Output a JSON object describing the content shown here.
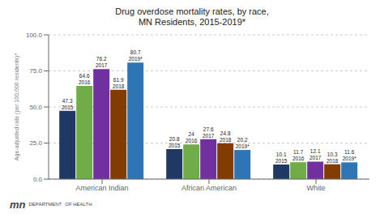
{
  "chart_data": {
    "type": "bar",
    "title": "Drug overdose mortality rates, by race,\nMN Residents, 2015-2019*",
    "ylabel": "Age-adjusted rate (per 100,000 residents)*",
    "categories": [
      "American Indian",
      "African American",
      "White"
    ],
    "series": [
      {
        "name": "2015",
        "color": "#1f3864",
        "values": [
          47.3,
          20.8,
          10.1
        ]
      },
      {
        "name": "2016",
        "color": "#70ad47",
        "values": [
          64.6,
          24.0,
          11.7
        ]
      },
      {
        "name": "2017",
        "color": "#7030a0",
        "values": [
          76.2,
          27.6,
          12.1
        ]
      },
      {
        "name": "2018",
        "color": "#833c00",
        "values": [
          61.9,
          24.8,
          10.3
        ]
      },
      {
        "name": "2019*",
        "color": "#2e75b6",
        "values": [
          80.7,
          20.2,
          11.6
        ]
      }
    ],
    "ylim": [
      0,
      100
    ],
    "yticks": [
      {
        "value": 0,
        "label": "0.0"
      },
      {
        "value": 25,
        "label": "25.0"
      },
      {
        "value": 50,
        "label": "50.0"
      },
      {
        "value": 75,
        "label": "75.0"
      },
      {
        "value": 100,
        "label": "100.0"
      }
    ],
    "grid": true,
    "data_labels": true,
    "annotations": [
      "mn",
      "DEPARTMENT",
      "OF HEALTH"
    ]
  }
}
